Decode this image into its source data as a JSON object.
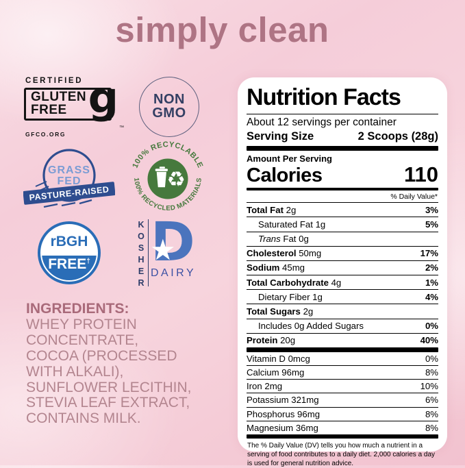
{
  "page": {
    "title": "simply clean"
  },
  "colors": {
    "brand_mauve": "#ae7484",
    "background_pink": "#f5cdd9",
    "badge_navy": "#2e4d8f",
    "badge_blue": "#2a6db7",
    "kosher_blue": "#4b74bd",
    "recycle_green": "#46793d",
    "label_black": "#000000",
    "panel_white": "#ffffff"
  },
  "badges": {
    "gluten_free": {
      "certified": "CERTIFIED",
      "line1": "GLUTEN",
      "line2": "FREE",
      "g": "g",
      "tm": "™",
      "org": "GFCO.ORG"
    },
    "non_gmo": {
      "line1": "NON",
      "line2": "GMO"
    },
    "grass_fed": {
      "line1": "GRASS",
      "line2": "FED",
      "banner": "PASTURE-RAISED"
    },
    "recyclable": {
      "top": "100% RECYCLABLE",
      "bottom": "100% RECYCLED MATERIALS",
      "symbol": "♻"
    },
    "rbgh": {
      "top": "rBGH",
      "bottom": "FREE",
      "dagger": "†"
    },
    "kosher": {
      "vertical": "KOSHER",
      "d": "D",
      "star": "★",
      "dairy": "DAIRY"
    }
  },
  "ingredients": {
    "heading": "INGREDIENTS:",
    "lines": [
      "WHEY PROTEIN",
      "CONCENTRATE,",
      "COCOA (PROCESSED",
      "WITH ALKALI),",
      "SUNFLOWER LECITHIN,",
      "STEVIA LEAF EXTRACT,",
      "CONTAINS MILK."
    ]
  },
  "nutrition": {
    "title": "Nutrition Facts",
    "servings": "About 12 servings per container",
    "serving_size_label": "Serving Size",
    "serving_size_value": "2 Scoops (28g)",
    "amount_per_serving": "Amount Per Serving",
    "calories_label": "Calories",
    "calories_value": "110",
    "daily_value_header": "% Daily Value*",
    "rows": [
      {
        "parts": [
          {
            "t": "Total Fat",
            "b": 1
          },
          {
            "t": " 2g"
          }
        ],
        "dv": "3%",
        "dvb": 1,
        "ind": 0
      },
      {
        "parts": [
          {
            "t": "Saturated Fat 1g"
          }
        ],
        "dv": "5%",
        "dvb": 1,
        "ind": 1
      },
      {
        "parts": [
          {
            "t": "Trans",
            "i": 1
          },
          {
            "t": " Fat 0g"
          }
        ],
        "dv": "",
        "dvb": 0,
        "ind": 1
      },
      {
        "parts": [
          {
            "t": "Cholesterol",
            "b": 1
          },
          {
            "t": " 50mg"
          }
        ],
        "dv": "17%",
        "dvb": 1,
        "ind": 0
      },
      {
        "parts": [
          {
            "t": "Sodium",
            "b": 1
          },
          {
            "t": " 45mg"
          }
        ],
        "dv": "2%",
        "dvb": 1,
        "ind": 0
      },
      {
        "parts": [
          {
            "t": "Total Carbohydrate",
            "b": 1
          },
          {
            "t": " 4g"
          }
        ],
        "dv": "1%",
        "dvb": 1,
        "ind": 0
      },
      {
        "parts": [
          {
            "t": "Dietary Fiber 1g"
          }
        ],
        "dv": "4%",
        "dvb": 1,
        "ind": 1
      },
      {
        "parts": [
          {
            "t": "Total Sugars",
            "b": 1
          },
          {
            "t": " 2g"
          }
        ],
        "dv": "",
        "dvb": 0,
        "ind": 0
      },
      {
        "parts": [
          {
            "t": "Includes 0g Added Sugars"
          }
        ],
        "dv": "0%",
        "dvb": 1,
        "ind": 1
      },
      {
        "parts": [
          {
            "t": "Protein",
            "b": 1
          },
          {
            "t": " 20g"
          }
        ],
        "dv": "40%",
        "dvb": 1,
        "ind": 0
      }
    ],
    "minerals": [
      {
        "name": "Vitamin D 0mcg",
        "dv": "0%"
      },
      {
        "name": "Calcium 96mg",
        "dv": "8%"
      },
      {
        "name": "Iron 2mg",
        "dv": "10%"
      },
      {
        "name": "Potassium 321mg",
        "dv": "6%"
      },
      {
        "name": "Phosphorus 96mg",
        "dv": "8%"
      },
      {
        "name": "Magnesium 36mg",
        "dv": "8%"
      }
    ],
    "footnote": "The % Daily Value (DV) tells you how much a nutrient in a serving of food contributes to a daily diet. 2,000 calories a day is used for general nutrition advice."
  }
}
